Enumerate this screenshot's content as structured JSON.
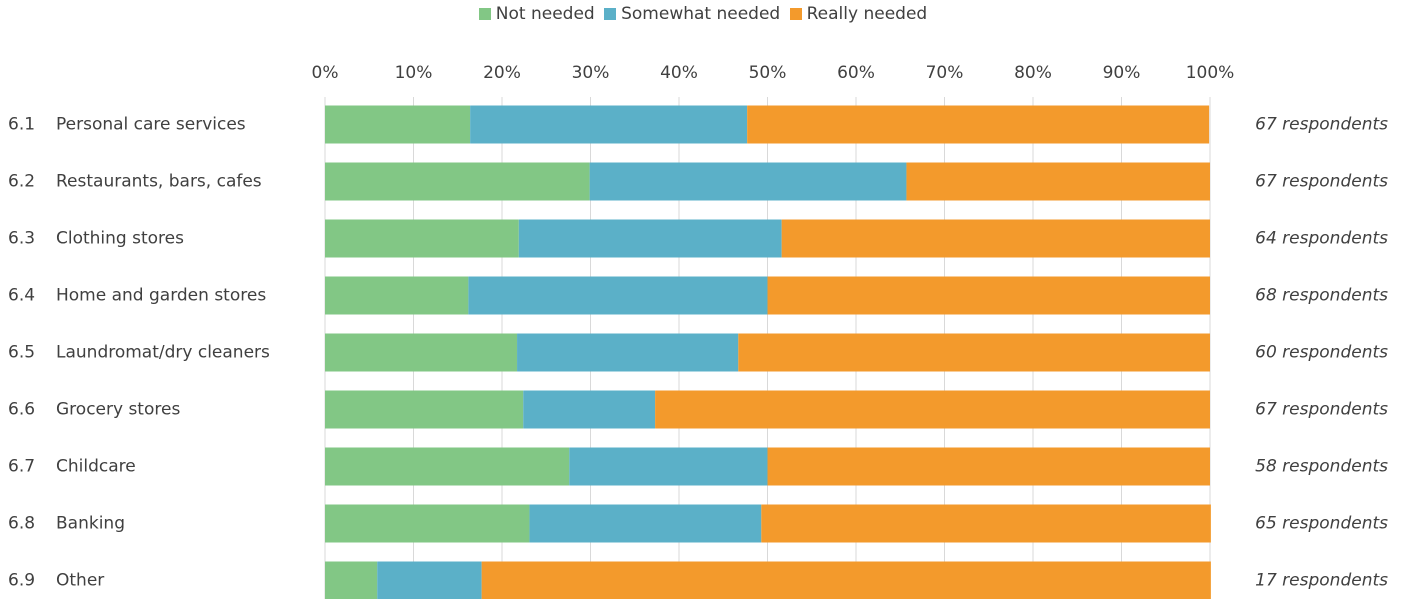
{
  "chart_data": {
    "type": "bar",
    "orientation": "horizontal",
    "stacked": true,
    "percent_stacked": true,
    "title": "",
    "xlabel": "",
    "ylabel": "",
    "xlim": [
      0,
      100
    ],
    "x_ticks": [
      "0%",
      "10%",
      "20%",
      "30%",
      "40%",
      "50%",
      "60%",
      "70%",
      "80%",
      "90%",
      "100%"
    ],
    "grid": true,
    "legend_position": "top",
    "categories": [
      {
        "number": "6.1",
        "label": "Personal care services"
      },
      {
        "number": "6.2",
        "label": "Restaurants, bars, cafes"
      },
      {
        "number": "6.3",
        "label": "Clothing stores"
      },
      {
        "number": "6.4",
        "label": "Home and garden stores"
      },
      {
        "number": "6.5",
        "label": "Laundromat/dry cleaners"
      },
      {
        "number": "6.6",
        "label": "Grocery stores"
      },
      {
        "number": "6.7",
        "label": "Childcare"
      },
      {
        "number": "6.8",
        "label": "Banking"
      },
      {
        "number": "6.9",
        "label": "Other"
      }
    ],
    "series": [
      {
        "name": "Not needed",
        "color": "#82c785",
        "values": [
          16.4,
          29.9,
          21.9,
          16.2,
          21.7,
          22.4,
          27.6,
          23.1,
          5.9
        ]
      },
      {
        "name": "Somewhat needed",
        "color": "#5bb0c8",
        "values": [
          31.3,
          35.8,
          29.7,
          33.8,
          25.0,
          14.9,
          22.4,
          26.2,
          11.8
        ]
      },
      {
        "name": "Really needed",
        "color": "#f39a2c",
        "values": [
          52.2,
          34.3,
          48.4,
          50.0,
          53.3,
          62.7,
          50.0,
          50.8,
          82.4
        ]
      }
    ],
    "annotations": [
      "67 respondents",
      "67 respondents",
      "64 respondents",
      "68 respondents",
      "60 respondents",
      "67 respondents",
      "58 respondents",
      "65 respondents",
      "17 respondents"
    ]
  }
}
